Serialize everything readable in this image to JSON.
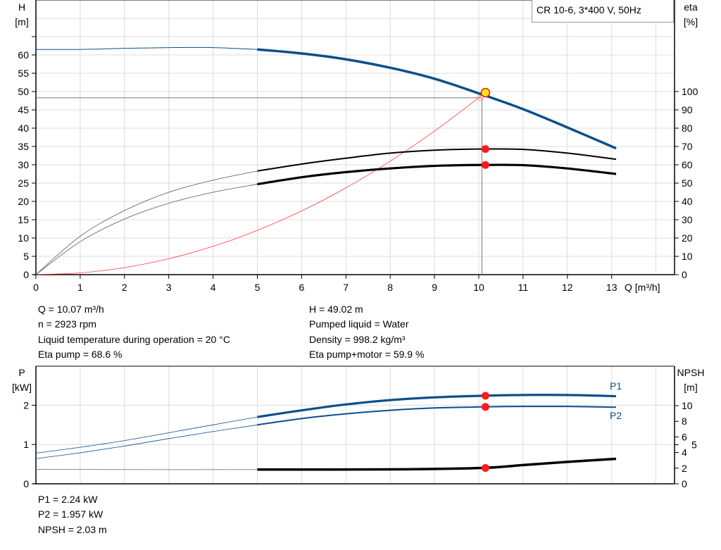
{
  "legend": "CR 10-6, 3*400 V, 50Hz",
  "chart_data": [
    {
      "type": "line",
      "xlabel": "Q [m³/h]",
      "ylabel": [
        "H",
        "[m]"
      ],
      "y2label": [
        "eta",
        "[%]"
      ],
      "xlim": [
        0,
        14
      ],
      "ylim": [
        0,
        75
      ],
      "y2lim": [
        0,
        150
      ],
      "x_ticks": [
        0,
        1,
        2,
        3,
        4,
        5,
        6,
        7,
        8,
        9,
        10,
        11,
        12,
        13
      ],
      "y_ticks": [
        0,
        5,
        10,
        15,
        20,
        25,
        30,
        35,
        40,
        45,
        50,
        55,
        60
      ],
      "y2_ticks": [
        0,
        10,
        20,
        30,
        40,
        50,
        60,
        70,
        80,
        90,
        100
      ],
      "grid": true,
      "series": [
        {
          "key": "H",
          "axis": "left",
          "color": "#0b4f8a",
          "x": [
            0,
            1,
            2,
            3,
            4,
            5,
            6,
            7,
            8,
            9,
            10,
            11,
            12,
            13.1
          ],
          "values": [
            61.5,
            61.5,
            61.8,
            62,
            62,
            61.5,
            60.4,
            58.8,
            56.5,
            53.5,
            49.5,
            45.2,
            40.2,
            34.5
          ]
        },
        {
          "key": "eta_pump",
          "axis": "right",
          "color": "#000000",
          "x": [
            0,
            1,
            2,
            3,
            4,
            5,
            6,
            7,
            8,
            9,
            10,
            11,
            12,
            13.1
          ],
          "values": [
            0,
            21,
            35,
            45,
            51.6,
            56.6,
            60.4,
            63.6,
            66.4,
            68,
            68.6,
            68.4,
            66.4,
            63
          ]
        },
        {
          "key": "eta_pump_motor",
          "axis": "right",
          "color": "#000000",
          "x": [
            0,
            1,
            2,
            3,
            4,
            5,
            6,
            7,
            8,
            9,
            10,
            11,
            12,
            13.1
          ],
          "values": [
            0,
            18,
            30.4,
            39,
            45,
            49.4,
            53.2,
            56,
            58,
            59.4,
            59.9,
            59.8,
            58,
            55
          ]
        },
        {
          "key": "system_curve",
          "axis": "left",
          "color": "#ff3b3b",
          "x": [
            0,
            1,
            2,
            3,
            4,
            5,
            6,
            7,
            8,
            9,
            10,
            10.07
          ],
          "values": [
            0,
            0.48,
            1.93,
            4.35,
            7.73,
            12.1,
            17.4,
            23.7,
            31,
            39.2,
            48.3,
            49.02
          ]
        }
      ],
      "duty_point": {
        "Q": 10.07,
        "H": 49.02,
        "eta_pump": 68.6,
        "eta_pump_motor": 59.9
      }
    },
    {
      "type": "line",
      "ylabel": [
        "P",
        "[kW]"
      ],
      "y2label": [
        "NPSH",
        "[m]"
      ],
      "xlim": [
        0,
        14
      ],
      "ylim": [
        0,
        2.84
      ],
      "y2lim": [
        0,
        14.2
      ],
      "y_ticks": [
        0,
        1,
        2
      ],
      "y2_ticks": [
        0,
        2,
        4,
        5,
        6,
        8,
        10
      ],
      "grid": true,
      "series": [
        {
          "name": "P1",
          "axis": "left",
          "color": "#0b4f8a",
          "x": [
            0,
            1,
            2,
            3,
            4,
            5,
            6,
            7,
            8,
            9,
            10.07,
            11,
            12,
            13.1
          ],
          "values": [
            0.78,
            0.93,
            1.1,
            1.3,
            1.5,
            1.7,
            1.87,
            2.02,
            2.13,
            2.2,
            2.24,
            2.26,
            2.26,
            2.23
          ]
        },
        {
          "name": "P2",
          "axis": "left",
          "color": "#0b4f8a",
          "x": [
            0,
            1,
            2,
            3,
            4,
            5,
            6,
            7,
            8,
            9,
            10.07,
            11,
            12,
            13.1
          ],
          "values": [
            0.64,
            0.79,
            0.96,
            1.15,
            1.33,
            1.5,
            1.66,
            1.78,
            1.87,
            1.93,
            1.957,
            1.97,
            1.97,
            1.95
          ]
        },
        {
          "key": "NPSH",
          "axis": "right",
          "color": "#000000",
          "x": [
            0,
            2,
            5,
            8,
            10.07,
            11,
            12,
            13.1
          ],
          "values": [
            1.85,
            1.82,
            1.82,
            1.85,
            2.03,
            2.4,
            2.8,
            3.2
          ]
        }
      ],
      "duty_point": {
        "Q": 10.07,
        "P1": 2.24,
        "P2": 1.957,
        "NPSH": 2.03
      }
    }
  ],
  "info": {
    "q": "Q = 10.07 m³/h",
    "n": "n = 2923 rpm",
    "temp": "Liquid temperature during operation = 20 °C",
    "eta_pump": "Eta pump = 68.6 %",
    "h": "H = 49.02 m",
    "liquid": "Pumped liquid = Water",
    "density": "Density = 998.2 kg/m³",
    "eta_total": "Eta pump+motor = 59.9 %",
    "p1": "P1 = 2.24 kW",
    "p2": "P2 = 1.957 kW",
    "npsh": "NPSH = 2.03 m"
  }
}
